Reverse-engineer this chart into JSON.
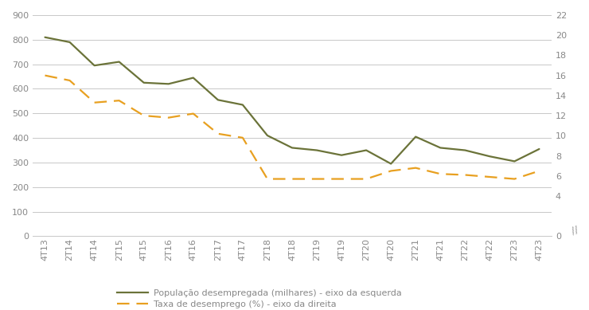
{
  "x_labels": [
    "4T13",
    "2T14",
    "4T14",
    "2T15",
    "4T15",
    "2T16",
    "4T16",
    "2T17",
    "4T17",
    "2T18",
    "4T18",
    "2T19",
    "4T19",
    "2T20",
    "4T20",
    "2T21",
    "4T21",
    "2T22",
    "4T22",
    "2T23",
    "4T23"
  ],
  "pop_desempregada": [
    810,
    790,
    695,
    710,
    625,
    620,
    645,
    555,
    535,
    410,
    360,
    350,
    330,
    350,
    295,
    405,
    360,
    350,
    325,
    305,
    355
  ],
  "taxa_desemprego": [
    16.0,
    15.5,
    13.3,
    13.5,
    12.0,
    11.8,
    12.2,
    10.2,
    9.8,
    5.7,
    5.7,
    5.7,
    5.7,
    5.7,
    6.5,
    6.8,
    6.2,
    6.1,
    5.9,
    5.7,
    6.5
  ],
  "line1_color": "#6b7339",
  "line2_color": "#e8a020",
  "ylim_left": [
    0,
    900
  ],
  "ylim_right": [
    0,
    22
  ],
  "yticks_left": [
    0,
    100,
    200,
    300,
    400,
    500,
    600,
    700,
    800,
    900
  ],
  "yticks_right": [
    0,
    4,
    6,
    8,
    10,
    12,
    14,
    16,
    18,
    20,
    22
  ],
  "legend1": "População desempregada (milhares) - eixo da esquerda",
  "legend2": "Taxa de desemprego (%) - eixo da direita",
  "bg_color": "#ffffff",
  "grid_color": "#c8c8c8",
  "tick_color": "#888888",
  "label_fontsize": 8,
  "legend_fontsize": 8
}
